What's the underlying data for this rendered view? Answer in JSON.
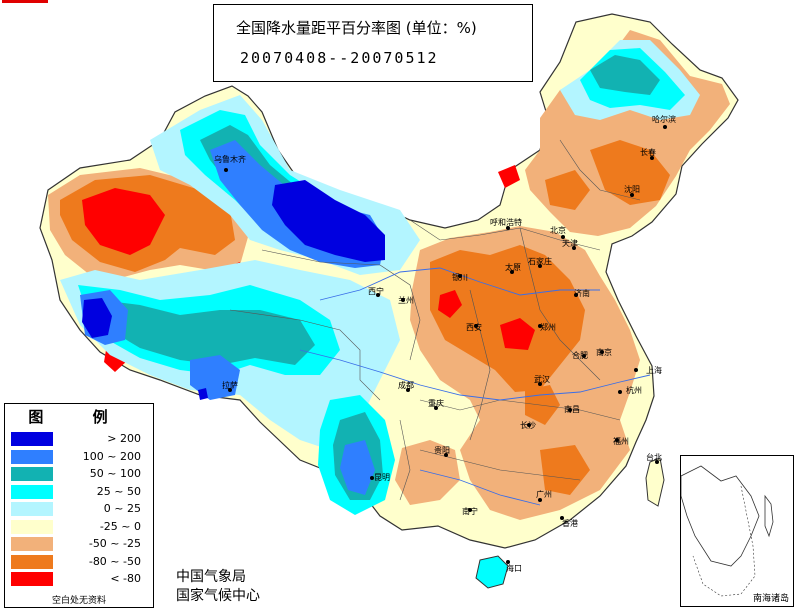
{
  "title": {
    "line1": "全国降水量距平百分率图 (单位：%)",
    "line2": "20070408--20070512"
  },
  "legend": {
    "title": "图 例",
    "items": [
      {
        "label": "> 200",
        "color": "#0000e0"
      },
      {
        "label": "100 ~ 200",
        "color": "#2f7fff"
      },
      {
        "label": "50 ~ 100",
        "color": "#12b2b2"
      },
      {
        "label": "25 ~ 50",
        "color": "#00ffff"
      },
      {
        "label": "0 ~ 25",
        "color": "#b3f5ff"
      },
      {
        "label": "-25 ~ 0",
        "color": "#ffffcc"
      },
      {
        "label": "-50 ~ -25",
        "color": "#f2b17a"
      },
      {
        "label": "-80 ~ -50",
        "color": "#ee7a1d"
      },
      {
        "label": "< -80",
        "color": "#ff0000"
      }
    ],
    "note": "空白处无资料"
  },
  "agency": {
    "line1": "中国气象局",
    "line2": "国家气候中心"
  },
  "inset_label": "南海诸岛",
  "cities": [
    "乌鲁木齐",
    "哈尔滨",
    "长春",
    "沈阳",
    "呼和浩特",
    "北京",
    "天津",
    "太原",
    "石家庄",
    "银川",
    "济南",
    "西宁",
    "兰州",
    "西安",
    "郑州",
    "合肥",
    "南京",
    "上海",
    "拉萨",
    "成都",
    "武汉",
    "杭州",
    "重庆",
    "长沙",
    "南昌",
    "贵阳",
    "福州",
    "昆明",
    "台北",
    "南宁",
    "广州",
    "香港",
    "海口"
  ]
}
